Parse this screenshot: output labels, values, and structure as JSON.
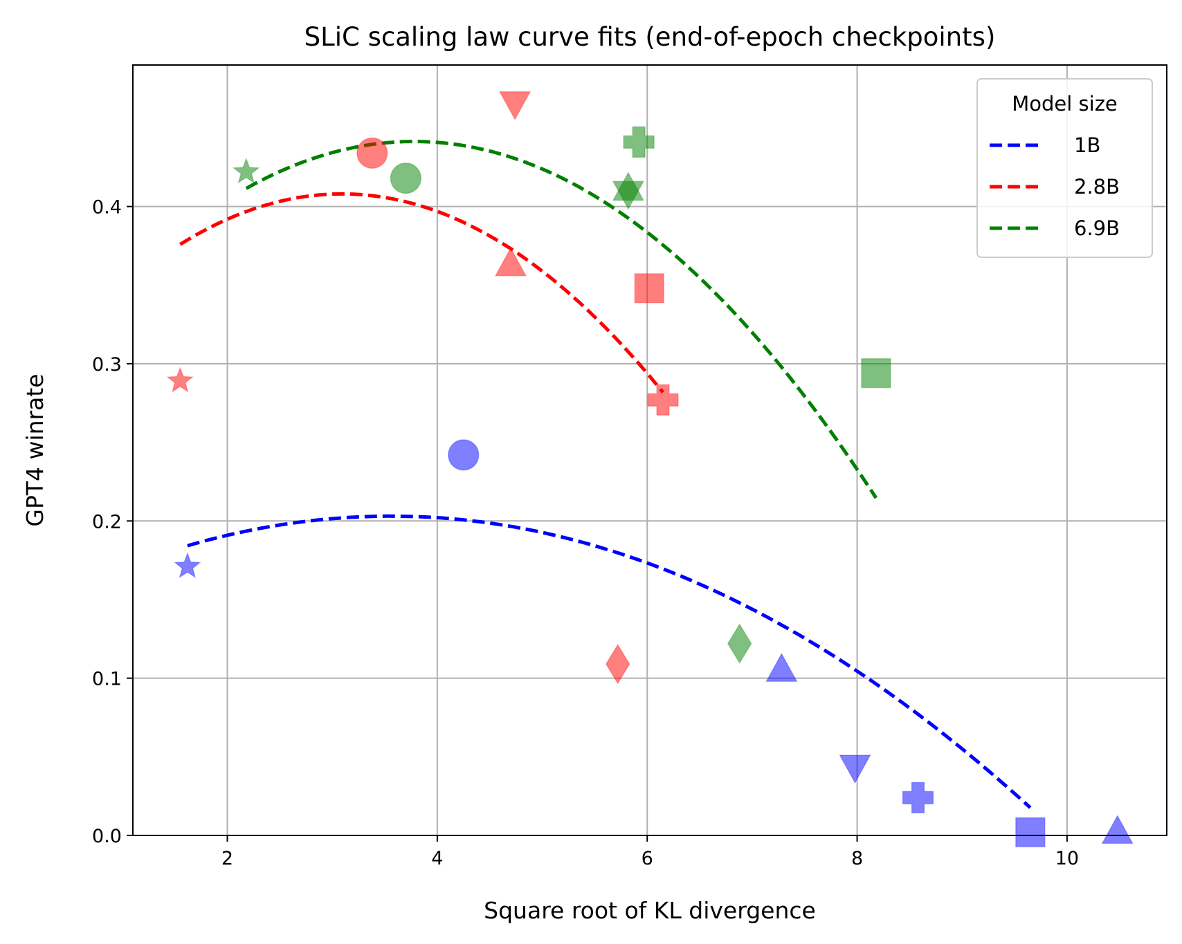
{
  "chart_data": {
    "type": "scatter",
    "title": "SLiC scaling law curve fits (end-of-epoch checkpoints)",
    "xlabel": "Square root of KL divergence",
    "ylabel": "GPT4 winrate",
    "xlim": [
      1.1,
      10.95
    ],
    "ylim": [
      0.0,
      0.49
    ],
    "x_ticks": [
      2,
      4,
      6,
      8,
      10
    ],
    "y_ticks": [
      0.0,
      0.1,
      0.2,
      0.3,
      0.4
    ],
    "x_tick_labels": [
      "2",
      "4",
      "6",
      "8",
      "10"
    ],
    "y_tick_labels": [
      "0.0",
      "0.1",
      "0.2",
      "0.3",
      "0.4"
    ],
    "grid": true,
    "legend": {
      "title": "Model size",
      "placement": "top-right",
      "entries": [
        "1B",
        "2.8B",
        "6.9B"
      ]
    },
    "series": [
      {
        "name": "1B",
        "color": "#0000ff",
        "points": [
          {
            "x": 1.62,
            "y": 0.171,
            "marker": "star"
          },
          {
            "x": 4.25,
            "y": 0.242,
            "marker": "circle"
          },
          {
            "x": 7.28,
            "y": 0.105,
            "marker": "triangle-up"
          },
          {
            "x": 7.98,
            "y": 0.044,
            "marker": "triangle-down"
          },
          {
            "x": 8.58,
            "y": 0.024,
            "marker": "plus"
          },
          {
            "x": 9.65,
            "y": 0.002,
            "marker": "square"
          },
          {
            "x": 10.48,
            "y": 0.002,
            "marker": "triangle-up"
          }
        ],
        "fit": {
          "x_range": [
            1.62,
            9.65
          ],
          "coef": [
            -0.005,
            0.0356,
            0.1397
          ]
        }
      },
      {
        "name": "2.8B",
        "color": "#ff0000",
        "points": [
          {
            "x": 1.55,
            "y": 0.289,
            "marker": "star"
          },
          {
            "x": 3.38,
            "y": 0.434,
            "marker": "circle"
          },
          {
            "x": 4.7,
            "y": 0.363,
            "marker": "triangle-up"
          },
          {
            "x": 4.74,
            "y": 0.466,
            "marker": "triangle-down"
          },
          {
            "x": 5.72,
            "y": 0.109,
            "marker": "diamond"
          },
          {
            "x": 6.02,
            "y": 0.348,
            "marker": "square"
          },
          {
            "x": 6.15,
            "y": 0.277,
            "marker": "plus"
          }
        ],
        "fit": {
          "x_range": [
            1.55,
            6.15
          ],
          "coef": [
            -0.0135,
            0.0835,
            0.2789
          ]
        }
      },
      {
        "name": "6.9B",
        "color": "#008000",
        "points": [
          {
            "x": 2.18,
            "y": 0.422,
            "marker": "star"
          },
          {
            "x": 3.7,
            "y": 0.418,
            "marker": "circle"
          },
          {
            "x": 5.82,
            "y": 0.411,
            "marker": "triangle-up"
          },
          {
            "x": 5.82,
            "y": 0.409,
            "marker": "triangle-down"
          },
          {
            "x": 5.92,
            "y": 0.441,
            "marker": "plus"
          },
          {
            "x": 6.88,
            "y": 0.122,
            "marker": "diamond"
          },
          {
            "x": 8.18,
            "y": 0.294,
            "marker": "square"
          }
        ],
        "fit": {
          "x_range": [
            2.18,
            8.18
          ],
          "coef": [
            -0.0117,
            0.0884,
            0.2744
          ]
        }
      }
    ]
  }
}
